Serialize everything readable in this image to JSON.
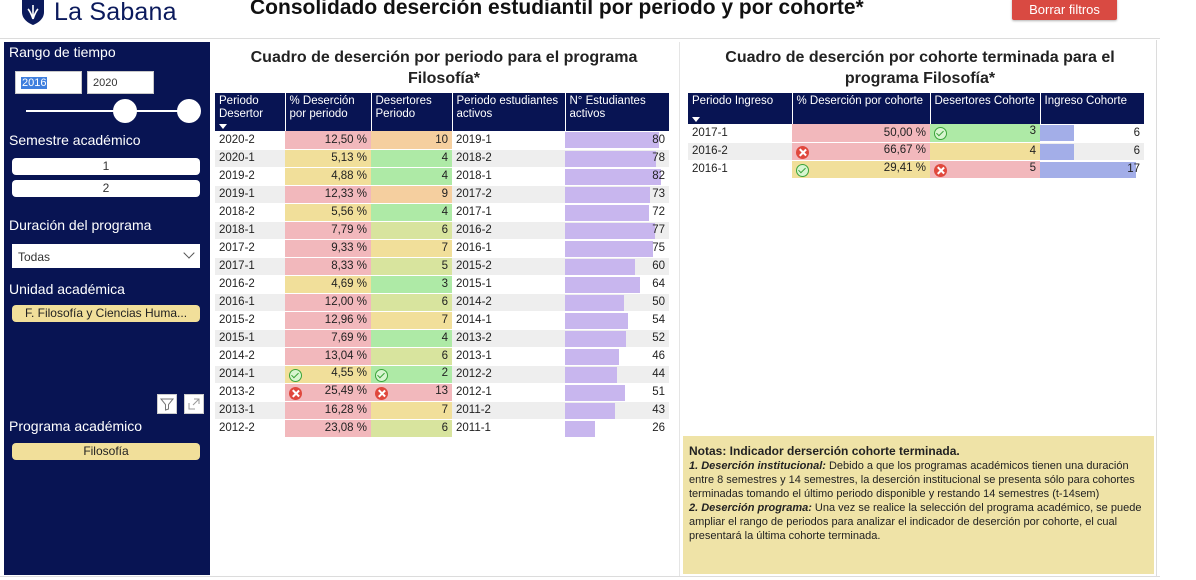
{
  "header": {
    "logo_text": "La Sabana",
    "title": "Consolidado deserción estudiantil por periodo y por cohorte*",
    "clear_button": "Borrar filtros"
  },
  "sidebar": {
    "time_range_label": "Rango de tiempo",
    "time_from": "2016",
    "time_to": "2020",
    "semester_label": "Semestre académico",
    "semester_options": [
      "1",
      "2"
    ],
    "duration_label": "Duración del programa",
    "duration_value": "Todas",
    "unit_label": "Unidad académica",
    "unit_value": "F. Filosofía y Ciencias Huma...",
    "program_label": "Programa académico",
    "program_value": "Filosofía"
  },
  "period_table": {
    "title": "Cuadro de deserción por periodo para el programa Filosofía*",
    "columns": [
      "Periodo Desertor",
      "% Deserción por periodo",
      "Desertores Periodo",
      "Periodo estudiantes activos",
      "N° Estudiantes activos"
    ],
    "rows": [
      {
        "periodo": "2020-2",
        "pct": "12,50 %",
        "desertores": "10",
        "activo_periodo": "2019-1",
        "activos": "80",
        "activos_n": 80,
        "pct_class": "r",
        "des_class": "o",
        "icon": ""
      },
      {
        "periodo": "2020-1",
        "pct": "5,13 %",
        "desertores": "4",
        "activo_periodo": "2018-2",
        "activos": "78",
        "activos_n": 78,
        "pct_class": "y",
        "des_class": "g",
        "icon": ""
      },
      {
        "periodo": "2019-2",
        "pct": "4,88 %",
        "desertores": "4",
        "activo_periodo": "2018-1",
        "activos": "82",
        "activos_n": 82,
        "pct_class": "y",
        "des_class": "g",
        "icon": ""
      },
      {
        "periodo": "2019-1",
        "pct": "12,33 %",
        "desertores": "9",
        "activo_periodo": "2017-2",
        "activos": "73",
        "activos_n": 73,
        "pct_class": "r",
        "des_class": "o",
        "icon": ""
      },
      {
        "periodo": "2018-2",
        "pct": "5,56 %",
        "desertores": "4",
        "activo_periodo": "2017-1",
        "activos": "72",
        "activos_n": 72,
        "pct_class": "y",
        "des_class": "g",
        "icon": ""
      },
      {
        "periodo": "2018-1",
        "pct": "7,79 %",
        "desertores": "6",
        "activo_periodo": "2016-2",
        "activos": "77",
        "activos_n": 77,
        "pct_class": "r",
        "des_class": "l",
        "icon": ""
      },
      {
        "periodo": "2017-2",
        "pct": "9,33 %",
        "desertores": "7",
        "activo_periodo": "2016-1",
        "activos": "75",
        "activos_n": 75,
        "pct_class": "r",
        "des_class": "y",
        "icon": ""
      },
      {
        "periodo": "2017-1",
        "pct": "8,33 %",
        "desertores": "5",
        "activo_periodo": "2015-2",
        "activos": "60",
        "activos_n": 60,
        "pct_class": "r",
        "des_class": "l",
        "icon": ""
      },
      {
        "periodo": "2016-2",
        "pct": "4,69 %",
        "desertores": "3",
        "activo_periodo": "2015-1",
        "activos": "64",
        "activos_n": 64,
        "pct_class": "y",
        "des_class": "g",
        "icon": ""
      },
      {
        "periodo": "2016-1",
        "pct": "12,00 %",
        "desertores": "6",
        "activo_periodo": "2014-2",
        "activos": "50",
        "activos_n": 50,
        "pct_class": "r",
        "des_class": "l",
        "icon": ""
      },
      {
        "periodo": "2015-2",
        "pct": "12,96 %",
        "desertores": "7",
        "activo_periodo": "2014-1",
        "activos": "54",
        "activos_n": 54,
        "pct_class": "r",
        "des_class": "y",
        "icon": ""
      },
      {
        "periodo": "2015-1",
        "pct": "7,69 %",
        "desertores": "4",
        "activo_periodo": "2013-2",
        "activos": "52",
        "activos_n": 52,
        "pct_class": "r",
        "des_class": "g",
        "icon": ""
      },
      {
        "periodo": "2014-2",
        "pct": "13,04 %",
        "desertores": "6",
        "activo_periodo": "2013-1",
        "activos": "46",
        "activos_n": 46,
        "pct_class": "r",
        "des_class": "l",
        "icon": ""
      },
      {
        "periodo": "2014-1",
        "pct": "4,55 %",
        "desertores": "2",
        "activo_periodo": "2012-2",
        "activos": "44",
        "activos_n": 44,
        "pct_class": "y",
        "des_class": "g",
        "icon": "ok"
      },
      {
        "periodo": "2013-2",
        "pct": "25,49 %",
        "desertores": "13",
        "activo_periodo": "2012-1",
        "activos": "51",
        "activos_n": 51,
        "pct_class": "r",
        "des_class": "r",
        "icon": "bad"
      },
      {
        "periodo": "2013-1",
        "pct": "16,28 %",
        "desertores": "7",
        "activo_periodo": "2011-2",
        "activos": "43",
        "activos_n": 43,
        "pct_class": "r",
        "des_class": "y",
        "icon": ""
      },
      {
        "periodo": "2012-2",
        "pct": "23,08 %",
        "desertores": "6",
        "activo_periodo": "2011-1",
        "activos": "26",
        "activos_n": 26,
        "pct_class": "r",
        "des_class": "l",
        "icon": ""
      }
    ]
  },
  "cohort_table": {
    "title": "Cuadro de deserción por cohorte terminada para el programa Filosofía*",
    "columns": [
      "Periodo Ingreso",
      "% Deserción por cohorte",
      "Desertores Cohorte",
      "Ingreso Cohorte"
    ],
    "rows": [
      {
        "periodo": "2017-1",
        "pct": "50,00 %",
        "desertores": "3",
        "ingreso": "6",
        "ingreso_n": 6,
        "pct_class": "r",
        "des_class": "g",
        "pct_icon": "",
        "des_icon": "ok"
      },
      {
        "periodo": "2016-2",
        "pct": "66,67 %",
        "desertores": "4",
        "ingreso": "6",
        "ingreso_n": 6,
        "pct_class": "r",
        "des_class": "y",
        "pct_icon": "bad",
        "des_icon": ""
      },
      {
        "periodo": "2016-1",
        "pct": "29,41 %",
        "desertores": "5",
        "ingreso": "17",
        "ingreso_n": 17,
        "pct_class": "y",
        "des_class": "r",
        "pct_icon": "ok",
        "des_icon": "bad"
      }
    ]
  },
  "notes": {
    "title": "Notas: Indicador derserción cohorte terminada.",
    "item1_head": "1. Deserción institucional:",
    "item1_body": " Debido a que los programas académicos tienen una duración entre 8 semestres y 14 semestres, la deserción institucional se presenta sólo para cohortes terminadas tomando el último periodo disponible y restando 14 semestres (t-14sem)",
    "item2_head": " 2. Deserción programa:",
    "item2_body": " Una vez se realice la selección del programa académico, se puede ampliar el rango de periodos para analizar el indicador de deserción por cohorte, el cual presentará la última cohorte terminada."
  },
  "colors": {
    "navy": "#081453",
    "red_cell": "#f2b8bc",
    "yellow_cell": "#f1df9a",
    "green_cell": "#aeeaa6",
    "bar_purple": "#c8b6ee",
    "clear_button": "#d94a42"
  }
}
